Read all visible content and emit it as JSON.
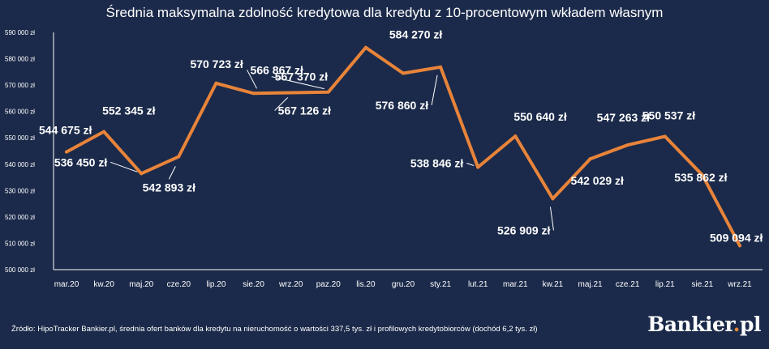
{
  "brand": {
    "name": "Bankier",
    "dot": ".",
    "tld": "pl"
  },
  "source_note": "Źródło: HipoTracker Bankier.pl, średnia ofert banków dla kredytu na nieruchomość o wartości 337,5 tys. zł i profilowych kredytobiorców (dochód 6,2 tys. zł)",
  "colors": {
    "background": "#1b2a4a",
    "line": "#e8843a",
    "text": "#ffffff",
    "axis": "#ffffff"
  },
  "chart_data": {
    "type": "line",
    "title": "Średnia maksymalna zdolność kredytowa dla kredytu z 10-procentowym wkładem własnym",
    "xlabel": "",
    "ylabel": "",
    "ylim": [
      500000,
      590000
    ],
    "yticks": [
      500000,
      510000,
      520000,
      530000,
      540000,
      550000,
      560000,
      570000,
      580000,
      590000
    ],
    "ytick_labels": [
      "500 000 zł",
      "510 000 zł",
      "520 000 zł",
      "530 000 zł",
      "540 000 zł",
      "550 000 zł",
      "560 000 zł",
      "570 000 zł",
      "580 000 zł",
      "590 000 zł"
    ],
    "categories": [
      "mar.20",
      "kw.20",
      "maj.20",
      "cze.20",
      "lip.20",
      "sie.20",
      "wrz.20",
      "paz.20",
      "lis.20",
      "gru.20",
      "sty.21",
      "lut.21",
      "mar.21",
      "kw.21",
      "maj.21",
      "cze.21",
      "lip.21",
      "sie.21",
      "wrz.21"
    ],
    "values": [
      544675,
      552345,
      536450,
      542893,
      570723,
      566867,
      567126,
      567370,
      584270,
      574500,
      576860,
      538846,
      550640,
      526909,
      542029,
      547263,
      550537,
      535862,
      509094
    ],
    "x_tick_categories": [
      "mar.20",
      "kw.20",
      "maj.20",
      "cze.20",
      "lip.20",
      "sie.20",
      "wrz.20",
      "paz.20",
      "lis.20",
      "gru.20",
      "sty.21",
      "lut.21",
      "mar.21",
      "kw.21",
      "maj.21",
      "cze.21",
      "lip.21",
      "sie.21",
      "wrz.21"
    ],
    "data_labels": [
      {
        "index": 0,
        "text": "544 675 zł"
      },
      {
        "index": 1,
        "text": "552 345 zł"
      },
      {
        "index": 2,
        "text": "536 450 zł"
      },
      {
        "index": 3,
        "text": "542 893 zł"
      },
      {
        "index": 4,
        "text": "570 723 zł"
      },
      {
        "index": 5,
        "text": "566 867 zł"
      },
      {
        "index": 6,
        "text": "567 126 zł"
      },
      {
        "index": 7,
        "text": "567 370 zł"
      },
      {
        "index": 8,
        "text": "584 270 zł"
      },
      {
        "index": 10,
        "text": "576 860 zł"
      },
      {
        "index": 11,
        "text": "538 846 zł"
      },
      {
        "index": 12,
        "text": "550 640 zł"
      },
      {
        "index": 13,
        "text": "526 909 zł"
      },
      {
        "index": 14,
        "text": "542 029 zł"
      },
      {
        "index": 15,
        "text": "547 263 zł"
      },
      {
        "index": 16,
        "text": "550 537 zł"
      },
      {
        "index": 17,
        "text": "535 862 zł"
      },
      {
        "index": 18,
        "text": "509 094 zł"
      }
    ],
    "grid": false,
    "legend": "none"
  }
}
